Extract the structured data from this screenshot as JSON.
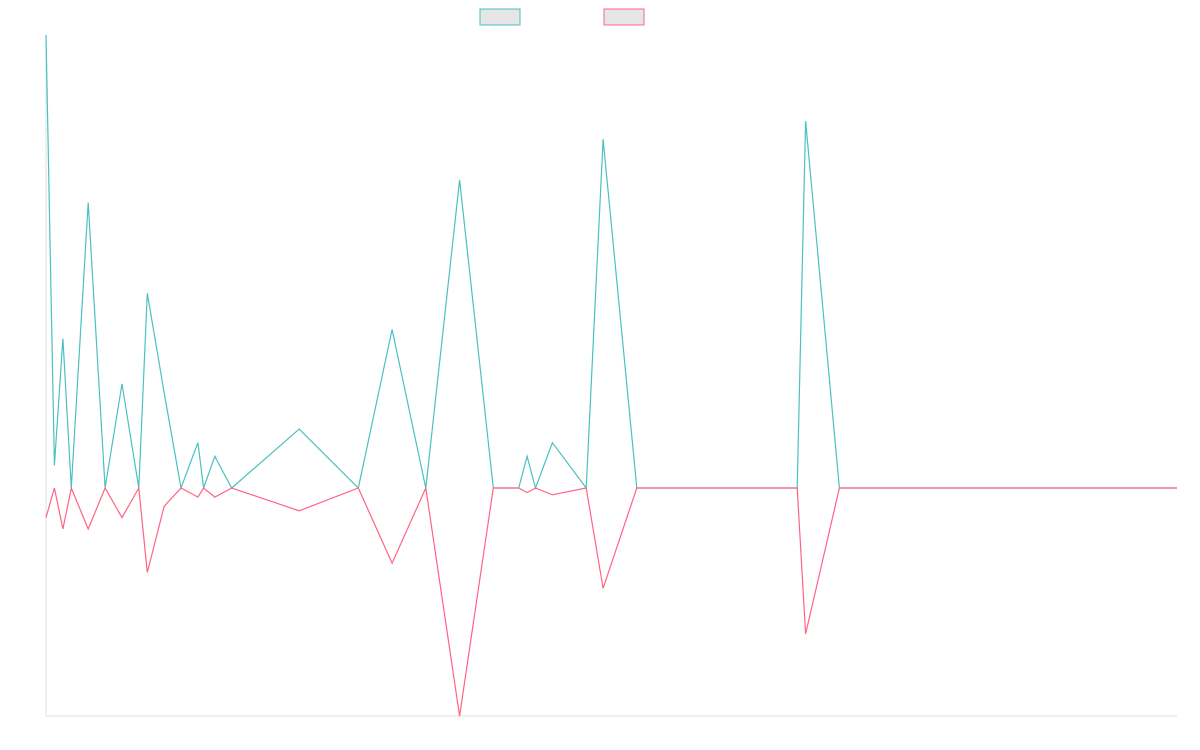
{
  "chart_data": {
    "type": "line",
    "title": "",
    "xlabel": "",
    "ylabel": "",
    "legend_position": "top-center",
    "grid": false,
    "ylim": [
      -100,
      100
    ],
    "x": [
      0,
      3,
      6,
      9,
      15,
      21,
      27,
      33,
      36,
      42,
      48,
      54,
      56,
      60,
      66,
      90,
      111,
      123,
      135,
      147,
      159,
      168,
      171,
      174,
      180,
      192,
      198,
      210,
      222,
      234,
      246,
      258,
      267,
      270,
      282,
      294,
      306,
      318,
      330,
      342,
      354,
      366,
      378,
      390,
      402
    ],
    "series": [
      {
        "name": "",
        "color": "#4bc0c0",
        "values": [
          100,
          5,
          33,
          0,
          63,
          0,
          23,
          0,
          43,
          21,
          0,
          10,
          0,
          7,
          0,
          13,
          0,
          35,
          0,
          68,
          0,
          0,
          7,
          0,
          10,
          0,
          77,
          0,
          0,
          0,
          0,
          0,
          0,
          81,
          0,
          0,
          0,
          0,
          0,
          0,
          0,
          0,
          0,
          0,
          0
        ]
      },
      {
        "name": "",
        "color": "#ff6384",
        "values": [
          -13,
          0,
          -18,
          0,
          -18,
          0,
          -13,
          0,
          -37,
          -8,
          0,
          -4,
          0,
          -4,
          0,
          -10,
          0,
          -33,
          0,
          -100,
          0,
          0,
          -2,
          0,
          -3,
          0,
          -44,
          0,
          0,
          0,
          0,
          0,
          0,
          -64,
          0,
          0,
          0,
          0,
          0,
          0,
          0,
          0,
          0,
          0,
          0
        ]
      }
    ]
  },
  "legend": {
    "items": [
      {
        "label": "",
        "stroke": "#4bc0c0",
        "fill": "#e6e6e6"
      },
      {
        "label": "",
        "stroke": "#ff6384",
        "fill": "#e6e6e6"
      }
    ]
  }
}
